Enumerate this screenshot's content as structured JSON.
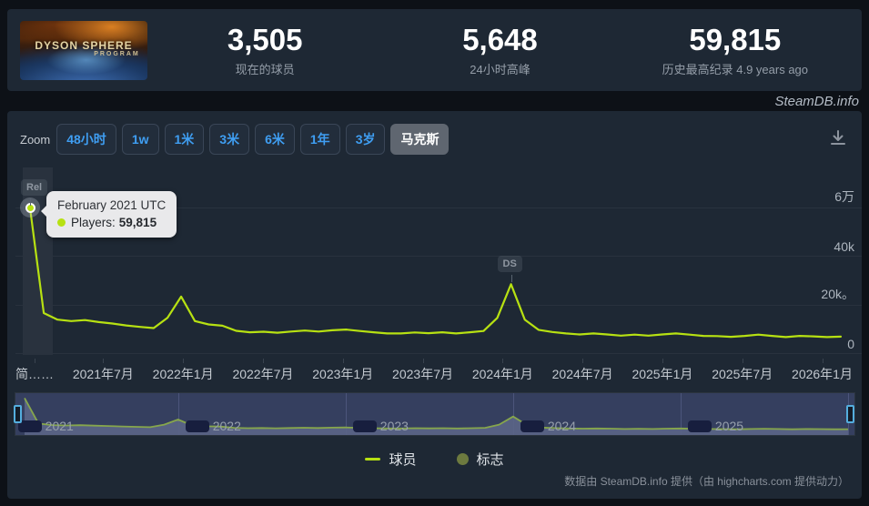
{
  "header": {
    "capsule_title": "DYSON SPHERE",
    "capsule_subtitle": "PROGRAM",
    "stats": [
      {
        "value": "3,505",
        "label": "现在的球员"
      },
      {
        "value": "5,648",
        "label": "24小时高峰"
      },
      {
        "value": "59,815",
        "label": "历史最高纪录 4.9 years ago"
      }
    ]
  },
  "watermark": "SteamDB.info",
  "toolbar": {
    "zoom_label": "Zoom",
    "buttons": [
      {
        "label": "48小时",
        "selected": false
      },
      {
        "label": "1w",
        "selected": false
      },
      {
        "label": "1米",
        "selected": false
      },
      {
        "label": "3米",
        "selected": false
      },
      {
        "label": "6米",
        "selected": false
      },
      {
        "label": "1年",
        "selected": false
      },
      {
        "label": "3岁",
        "selected": false
      },
      {
        "label": "马克斯",
        "selected": true
      }
    ],
    "download_icon": "download-chart"
  },
  "tooltip": {
    "title": "February 2021 UTC",
    "series_label": "Players:",
    "value": "59,815"
  },
  "chart_data": {
    "type": "line",
    "title": "",
    "xlabel": "",
    "ylabel": "",
    "ylim": [
      0,
      77000
    ],
    "accent_color": "#b7e112",
    "series": [
      {
        "name": "球员",
        "color": "#b7e112",
        "points": [
          [
            "2021-02",
            59815
          ],
          [
            "2021-03",
            16500
          ],
          [
            "2021-04",
            13800
          ],
          [
            "2021-05",
            13200
          ],
          [
            "2021-06",
            13600
          ],
          [
            "2021-07",
            12800
          ],
          [
            "2021-08",
            12200
          ],
          [
            "2021-09",
            11400
          ],
          [
            "2021-10",
            10800
          ],
          [
            "2021-11",
            10300
          ],
          [
            "2021-12",
            14500
          ],
          [
            "2022-01",
            23300
          ],
          [
            "2022-02",
            13200
          ],
          [
            "2022-03",
            11800
          ],
          [
            "2022-04",
            11300
          ],
          [
            "2022-05",
            9200
          ],
          [
            "2022-06",
            8600
          ],
          [
            "2022-07",
            8800
          ],
          [
            "2022-08",
            8400
          ],
          [
            "2022-09",
            8900
          ],
          [
            "2022-10",
            9300
          ],
          [
            "2022-11",
            8900
          ],
          [
            "2022-12",
            9400
          ],
          [
            "2023-01",
            9700
          ],
          [
            "2023-02",
            9100
          ],
          [
            "2023-03",
            8600
          ],
          [
            "2023-04",
            8100
          ],
          [
            "2023-05",
            8100
          ],
          [
            "2023-06",
            8500
          ],
          [
            "2023-07",
            8200
          ],
          [
            "2023-08",
            8600
          ],
          [
            "2023-09",
            8100
          ],
          [
            "2023-10",
            8600
          ],
          [
            "2023-11",
            9100
          ],
          [
            "2023-12",
            14500
          ],
          [
            "2024-01",
            28400
          ],
          [
            "2024-02",
            13800
          ],
          [
            "2024-03",
            9600
          ],
          [
            "2024-04",
            8700
          ],
          [
            "2024-05",
            8100
          ],
          [
            "2024-06",
            7700
          ],
          [
            "2024-07",
            8100
          ],
          [
            "2024-08",
            7700
          ],
          [
            "2024-09",
            7200
          ],
          [
            "2024-10",
            7600
          ],
          [
            "2024-11",
            7200
          ],
          [
            "2024-12",
            7700
          ],
          [
            "2025-01",
            8100
          ],
          [
            "2025-02",
            7600
          ],
          [
            "2025-03",
            7100
          ],
          [
            "2025-04",
            7000
          ],
          [
            "2025-05",
            6700
          ],
          [
            "2025-06",
            7100
          ],
          [
            "2025-07",
            7600
          ],
          [
            "2025-08",
            7100
          ],
          [
            "2025-09",
            6600
          ],
          [
            "2025-10",
            7100
          ],
          [
            "2025-11",
            6900
          ],
          [
            "2025-12",
            6600
          ],
          [
            "2026-01",
            6800
          ]
        ]
      }
    ],
    "flags": [
      {
        "label": "Rel",
        "month": "2021-02"
      },
      {
        "label": "DS",
        "month": "2024-01"
      }
    ],
    "yticks": [
      {
        "value": 0,
        "label": "0"
      },
      {
        "value": 20000,
        "label": "20k。"
      },
      {
        "value": 40000,
        "label": "40k"
      },
      {
        "value": 60000,
        "label": "6万"
      }
    ],
    "xticks": [
      "简……",
      "2021年7月",
      "2022年1月",
      "2022年7月",
      "2023年1月",
      "2023年7月",
      "2024年1月",
      "2024年7月",
      "2025年1月",
      "2025年7月",
      "2026年1月"
    ],
    "navigator_years": [
      "2021",
      "2022",
      "2023",
      "2024",
      "2025"
    ],
    "legend_position": "bottom",
    "grid": true
  },
  "legend": [
    {
      "label": "球员",
      "marker": "line",
      "color": "#b7e112"
    },
    {
      "label": "标志",
      "marker": "circle",
      "color": "#6d7a3f"
    }
  ],
  "credits": "数据由 SteamDB.info 提供（由 highcharts.com 提供动力）"
}
